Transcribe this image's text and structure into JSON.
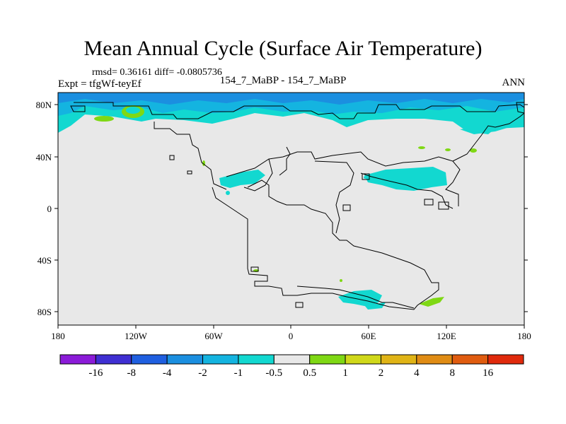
{
  "title": "Mean Annual Cycle (Surface Air Temperature)",
  "stats": "rmsd= 0.36161 diff= -0.0805736",
  "left_label": "Expt = tfgWf-teyEf",
  "center_label": "154_7_MaBP - 154_7_MaBP",
  "right_label": "ANN",
  "chart_data": {
    "type": "map",
    "lon_ticks": [
      "180",
      "120W",
      "60W",
      "0",
      "60E",
      "120E",
      "180"
    ],
    "lat_ticks": [
      "80N",
      "40N",
      "0",
      "40S",
      "80S"
    ],
    "colorbar": {
      "labels": [
        "-16",
        "-8",
        "-4",
        "-2",
        "-1",
        "-0.5",
        "0.5",
        "1",
        "2",
        "4",
        "8",
        "16"
      ],
      "colors": [
        "#8b1bd8",
        "#3f2fd2",
        "#1f5fe0",
        "#1b8fe0",
        "#14b4e0",
        "#12d8d0",
        "#e8e8e8",
        "#7fd814",
        "#d0d81a",
        "#e0b416",
        "#e08c14",
        "#e05c10",
        "#e02a0c"
      ]
    }
  }
}
